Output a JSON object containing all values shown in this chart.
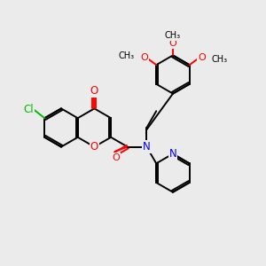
{
  "bg_color": "#ebebeb",
  "bond_color": "#000000",
  "oxygen_color": "#ff0000",
  "nitrogen_color": "#0000ff",
  "chlorine_color": "#00bb00",
  "line_width": 1.4,
  "font_size": 8.5,
  "xlim": [
    0,
    10
  ],
  "ylim": [
    0,
    10
  ]
}
